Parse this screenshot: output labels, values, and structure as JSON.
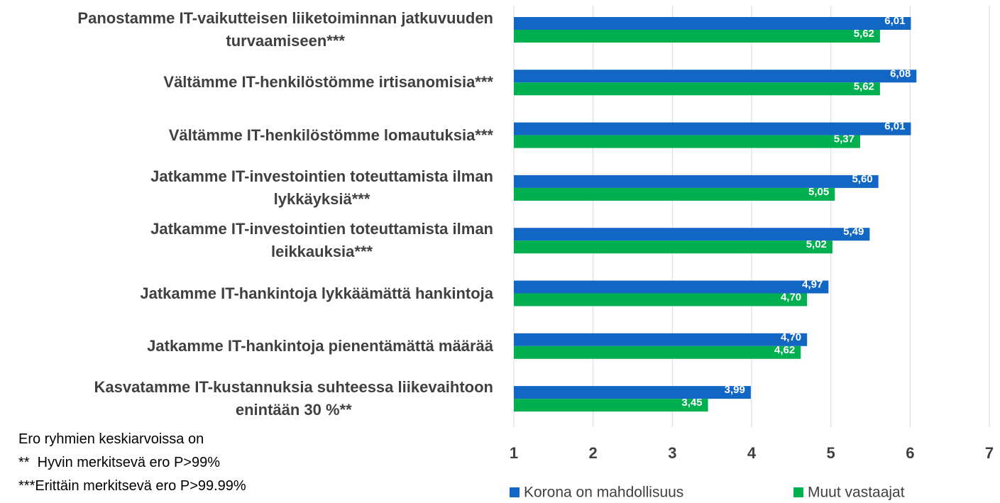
{
  "chart_data": {
    "type": "bar",
    "orientation": "horizontal",
    "categories": [
      "Panostamme IT-vaikutteisen liiketoiminnan jatkuvuuden\nturvaamiseen***",
      "Vältämme IT-henkilöstömme irtisanomisia***",
      "Vältämme IT-henkilöstömme lomautuksia***",
      "Jatkamme IT-investointien toteuttamista ilman\nlykkäyksiä***",
      "Jatkamme IT-investointien toteuttamista ilman\nleikkauksia***",
      "Jatkamme IT-hankintoja lykkäämättä hankintoja",
      "Jatkamme IT-hankintoja pienentämättä määrää",
      "Kasvatamme IT-kustannuksia suhteessa liikevaihtoon\nenintään 30 %**"
    ],
    "series": [
      {
        "name": "Korona on mahdollisuus",
        "color": "#1266c4",
        "values": [
          6.01,
          6.08,
          6.01,
          5.6,
          5.49,
          4.97,
          4.7,
          3.99
        ],
        "value_labels": [
          "6,01",
          "6,08",
          "6,01",
          "5,60",
          "5,49",
          "4,97",
          "4,70",
          "3,99"
        ]
      },
      {
        "name": "Muut vastaajat",
        "color": "#00b050",
        "values": [
          5.62,
          5.62,
          5.37,
          5.05,
          5.02,
          4.7,
          4.62,
          3.45
        ],
        "value_labels": [
          "5,62",
          "5,62",
          "5,37",
          "5,05",
          "5,02",
          "4,70",
          "4,62",
          "3,45"
        ]
      }
    ],
    "xlim": [
      1,
      7
    ],
    "xticks": [
      1,
      2,
      3,
      4,
      5,
      6,
      7
    ],
    "grid": true,
    "legend": "bottom",
    "notes": [
      "Ero ryhmien keskiarvoissa on",
      "**  Hyvin merkitsevä ero P>99%",
      "***Erittäin merkitsevä ero P>99.99%"
    ]
  }
}
